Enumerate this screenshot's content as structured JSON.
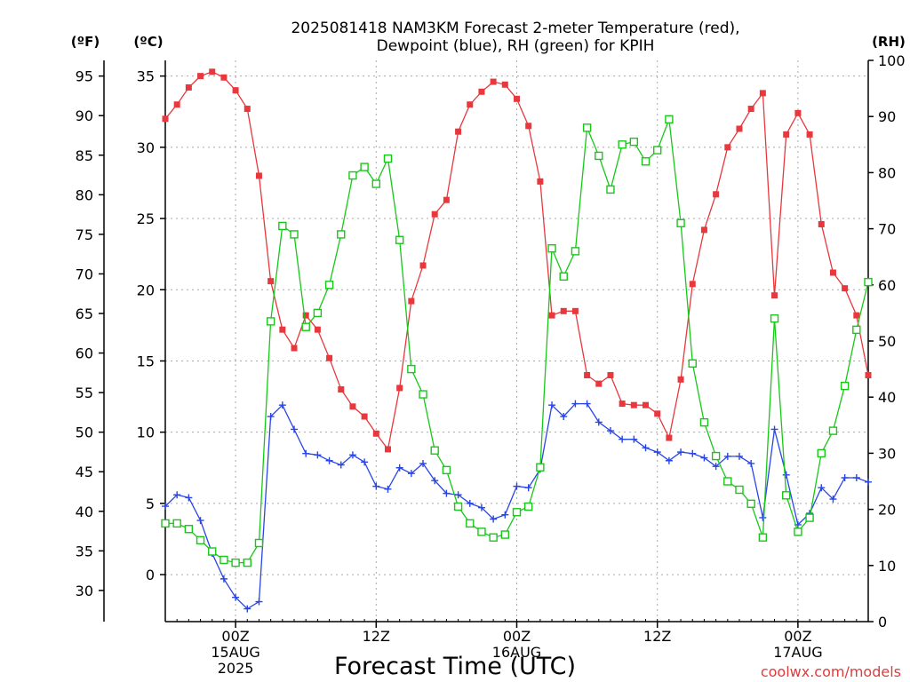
{
  "chart_data": {
    "type": "line",
    "title": [
      "2025081418 NAM3KM Forecast 2-meter Temperature (red),",
      "Dewpoint (blue), RH (green) for KPIH"
    ],
    "xlabel": "Forecast Time (UTC)",
    "credit": "coolwx.com/models",
    "left_f_label": "(ºF)",
    "left_c_label": "(ºC)",
    "right_label": "(RH)",
    "x_unit": "hours after 2025-08-14 18Z",
    "xlim": [
      0,
      60
    ],
    "x_ticks": [
      {
        "x": 6,
        "lines": [
          "00Z",
          "15AUG",
          "2025"
        ]
      },
      {
        "x": 18,
        "lines": [
          "12Z"
        ]
      },
      {
        "x": 30,
        "lines": [
          "00Z",
          "16AUG"
        ]
      },
      {
        "x": 42,
        "lines": [
          "12Z"
        ]
      },
      {
        "x": 54,
        "lines": [
          "00Z",
          "17AUG"
        ]
      }
    ],
    "ylim_c": [
      -3.3,
      36.1
    ],
    "c_ticks": [
      0,
      5,
      10,
      15,
      20,
      25,
      30,
      35
    ],
    "f_ticks": [
      30,
      35,
      40,
      45,
      50,
      55,
      60,
      65,
      70,
      75,
      80,
      85,
      90,
      95
    ],
    "ylim_rh": [
      0,
      100
    ],
    "rh_ticks": [
      0,
      10,
      20,
      30,
      40,
      50,
      60,
      70,
      80,
      90,
      100
    ],
    "grid": true,
    "colors": {
      "temperature": "#e8383d",
      "dewpoint": "#2845e8",
      "rh": "#18c818"
    },
    "x": [
      0,
      1,
      2,
      3,
      4,
      5,
      6,
      7,
      8,
      9,
      10,
      11,
      12,
      13,
      14,
      15,
      16,
      17,
      18,
      19,
      20,
      21,
      22,
      23,
      24,
      25,
      26,
      27,
      28,
      29,
      30,
      31,
      32,
      33,
      34,
      35,
      36,
      37,
      38,
      39,
      40,
      41,
      42,
      43,
      44,
      45,
      46,
      47,
      48,
      49,
      50,
      51,
      52,
      53,
      54,
      55,
      56,
      57,
      58,
      59,
      60
    ],
    "series": [
      {
        "name": "Temperature",
        "axis": "c",
        "marker": "filled-square",
        "color": "#e8383d",
        "values": [
          32.0,
          33.0,
          34.2,
          35.0,
          35.3,
          34.9,
          34.0,
          32.7,
          28.0,
          20.6,
          17.2,
          15.9,
          18.2,
          17.2,
          15.2,
          13.0,
          11.8,
          11.1,
          9.9,
          8.8,
          13.1,
          19.2,
          21.7,
          25.3,
          26.3,
          31.1,
          33.0,
          33.9,
          34.6,
          34.4,
          33.4,
          31.5,
          27.6,
          18.2,
          18.5,
          18.5,
          14.0,
          13.4,
          14.0,
          12.0,
          11.9,
          11.9,
          11.3,
          9.6,
          13.7,
          20.4,
          24.2,
          26.7,
          30.0,
          31.3,
          32.7,
          33.8,
          19.6,
          30.9,
          32.4,
          30.9,
          24.6,
          21.2,
          20.1,
          18.2,
          14.0
        ]
      },
      {
        "name": "Dewpoint",
        "axis": "c",
        "marker": "plus",
        "color": "#2845e8",
        "values": [
          4.8,
          5.6,
          5.4,
          3.8,
          1.5,
          -0.3,
          -1.6,
          -2.4,
          -1.9,
          11.1,
          11.9,
          10.2,
          8.5,
          8.4,
          8.0,
          7.7,
          8.4,
          7.9,
          6.2,
          6.0,
          7.5,
          7.1,
          7.8,
          6.6,
          5.7,
          5.6,
          5.0,
          4.7,
          3.9,
          4.2,
          6.2,
          6.1,
          7.4,
          11.9,
          11.1,
          12.0,
          12.0,
          10.7,
          10.1,
          9.5,
          9.5,
          8.9,
          8.6,
          8.0,
          8.6,
          8.5,
          8.2,
          7.6,
          8.3,
          8.3,
          7.8,
          4.0,
          10.2,
          7.0,
          3.5,
          4.3,
          6.1,
          5.3,
          6.8,
          6.8,
          6.5
        ]
      },
      {
        "name": "RH",
        "axis": "rh",
        "marker": "open-square",
        "color": "#18c818",
        "values": [
          17.5,
          17.5,
          16.5,
          14.5,
          12.5,
          11.0,
          10.5,
          10.5,
          14.0,
          53.5,
          70.5,
          69.0,
          52.5,
          55.0,
          60.0,
          69.0,
          79.5,
          81.0,
          78.0,
          82.5,
          68.0,
          45.0,
          40.5,
          30.5,
          27.0,
          20.5,
          17.5,
          16.0,
          15.0,
          15.5,
          19.5,
          20.5,
          27.5,
          66.5,
          61.5,
          66.0,
          88.0,
          83.0,
          77.0,
          85.0,
          85.5,
          82.0,
          84.0,
          89.5,
          71.0,
          46.0,
          35.5,
          29.5,
          25.0,
          23.5,
          21.0,
          15.0,
          54.0,
          22.5,
          16.0,
          18.5,
          30.0,
          34.0,
          42.0,
          52.0,
          60.5
        ]
      }
    ]
  }
}
